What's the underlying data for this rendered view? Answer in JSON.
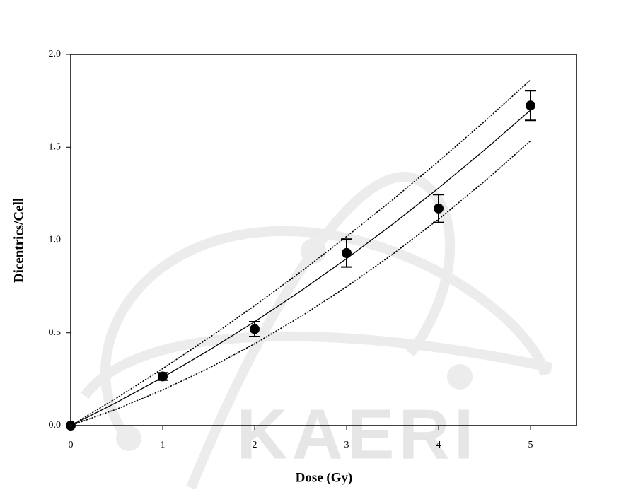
{
  "chart_data": {
    "type": "scatter",
    "xlabel": "Dose (Gy)",
    "ylabel": "Dicentrics/Cell",
    "watermark": "KAERI",
    "xlim": [
      0,
      5.5
    ],
    "ylim": [
      0,
      2
    ],
    "xticks": [
      0,
      1,
      2,
      3,
      4,
      5
    ],
    "yticks": [
      {
        "value": 0,
        "label": "0.0"
      },
      0.5,
      {
        "value": 1,
        "label": "1.0"
      },
      1.5,
      {
        "value": 2,
        "label": "2.0"
      }
    ],
    "series": [
      {
        "type": "scatter",
        "color": "#000000",
        "x": [
          0,
          1,
          2,
          3,
          4,
          5
        ],
        "values": [
          0,
          0.265,
          0.52,
          0.93,
          1.17,
          1.725
        ],
        "errors": [
          null,
          0.02,
          0.04,
          0.075,
          0.075,
          0.08
        ]
      },
      {
        "type": "line",
        "style": "solid",
        "color": "#000000",
        "x": [
          0,
          0.5,
          1,
          1.5,
          2,
          2.5,
          3,
          3.5,
          4,
          4.5,
          5
        ],
        "values": [
          0,
          0.125,
          0.26,
          0.405,
          0.56,
          0.725,
          0.9,
          1.085,
          1.28,
          1.485,
          1.7
        ]
      },
      {
        "type": "line",
        "style": "dotted",
        "color": "#000000",
        "x": [
          0,
          0.5,
          1,
          1.5,
          2,
          2.5,
          3,
          3.5,
          4,
          4.5,
          5
        ],
        "values": [
          0,
          0.149,
          0.307,
          0.472,
          0.646,
          0.828,
          1.019,
          1.217,
          1.424,
          1.639,
          1.863
        ]
      },
      {
        "type": "line",
        "style": "dotted",
        "color": "#000000",
        "x": [
          0,
          0.5,
          1,
          1.5,
          2,
          2.5,
          3,
          3.5,
          4,
          4.5,
          5
        ],
        "values": [
          0,
          0.089,
          0.192,
          0.309,
          0.441,
          0.587,
          0.748,
          0.923,
          1.112,
          1.316,
          1.534
        ]
      }
    ]
  }
}
